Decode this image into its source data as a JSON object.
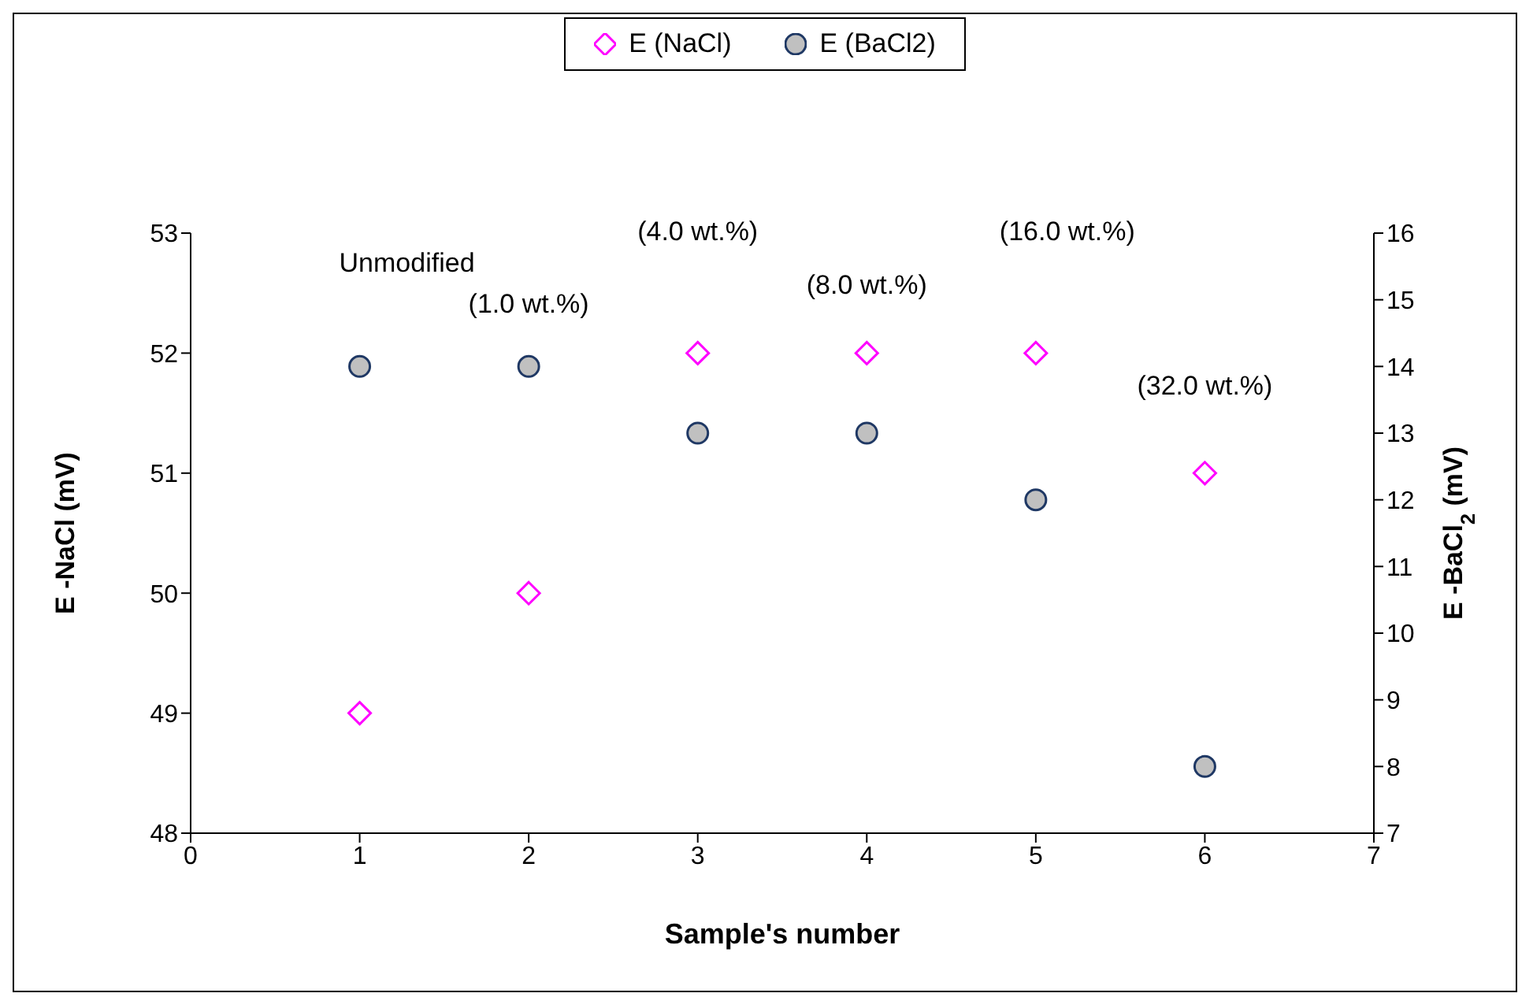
{
  "chart_data": {
    "type": "scatter",
    "xlabel": "Sample's number",
    "ylabel": "E -NaCl (mV)",
    "y2label": "E -BaCl$_{2}$ (mV)",
    "x": [
      1,
      2,
      3,
      4,
      5,
      6
    ],
    "series": [
      {
        "name": "E (NaCl)",
        "color": "#ff00ff",
        "marker": "diamond",
        "values": [
          49,
          50,
          52,
          52,
          52,
          51
        ]
      },
      {
        "name": "E (BaCl2)",
        "color": "#1f3864",
        "marker": "circle",
        "axis": "y2",
        "values": [
          14,
          14,
          13,
          13,
          12,
          8
        ]
      }
    ],
    "xlim": [
      0,
      7
    ],
    "xticks": [
      0,
      1,
      2,
      3,
      4,
      5,
      6,
      7
    ],
    "ylim": [
      48,
      53
    ],
    "yticks": [
      48,
      49,
      50,
      51,
      52,
      53
    ],
    "y2lim": [
      7,
      16
    ],
    "y2ticks": [
      7,
      8,
      9,
      10,
      11,
      12,
      13,
      14,
      15,
      16
    ],
    "annotations": [
      "Unmodified",
      "(1.0 wt.%)",
      "(4.0 wt.%)",
      "(8.0 wt.%)",
      "(16.0 wt.%)",
      "(32.0 wt.%)"
    ],
    "grid": false,
    "legend": "top"
  }
}
